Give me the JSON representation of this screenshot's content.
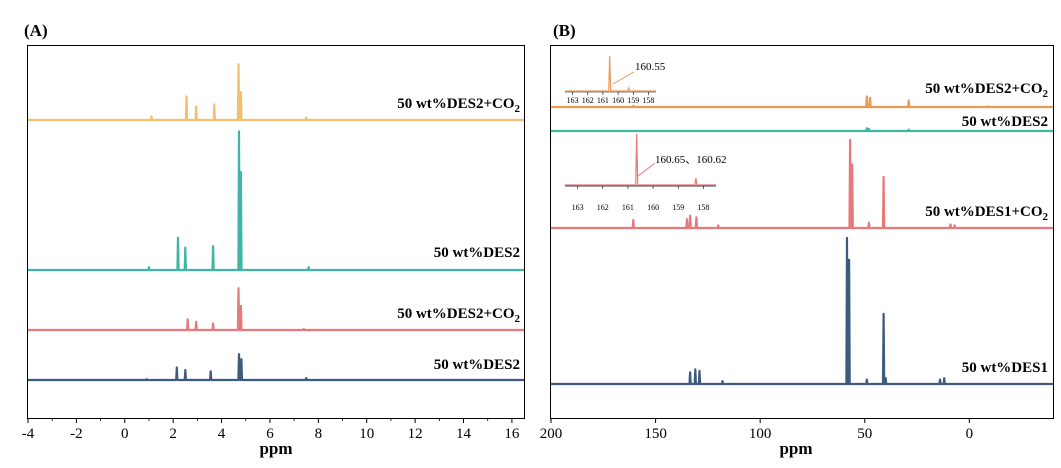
{
  "chart_data": [
    {
      "panel": "(A)",
      "type": "line",
      "title": "",
      "xlabel": "ppm",
      "ylabel": "",
      "xlim": [
        -4,
        16.5
      ],
      "x_ticks": [
        "-4",
        "-2",
        "0",
        "2",
        "4",
        "6",
        "8",
        "10",
        "12",
        "14",
        "16"
      ],
      "series": [
        {
          "name": "50 wt%DES2+CO₂",
          "label_main": "50 wt%DES2+CO",
          "label_sub": "2",
          "color": "#f3bf6e",
          "peaks": [
            [
              1.1,
              0.06
            ],
            [
              2.55,
              0.38
            ],
            [
              2.95,
              0.22
            ],
            [
              3.7,
              0.25
            ],
            [
              4.7,
              0.9
            ],
            [
              4.8,
              0.45
            ],
            [
              7.5,
              0.04
            ]
          ]
        },
        {
          "name": "50 wt%DES2",
          "label_main": "50 wt%DES2",
          "label_sub": "",
          "color": "#3fb6a3",
          "peaks": [
            [
              1.0,
              0.02
            ],
            [
              2.2,
              0.23
            ],
            [
              2.5,
              0.16
            ],
            [
              3.65,
              0.17
            ],
            [
              4.72,
              0.99
            ],
            [
              4.8,
              0.7
            ],
            [
              7.6,
              0.02
            ]
          ]
        },
        {
          "name": "50 wt%DES2+CO₂",
          "label_main": "50 wt%DES2+CO",
          "label_sub": "2",
          "color": "#e8787a",
          "peaks": [
            [
              2.6,
              0.22
            ],
            [
              2.95,
              0.17
            ],
            [
              3.65,
              0.14
            ],
            [
              4.7,
              0.87
            ],
            [
              4.8,
              0.5
            ],
            [
              7.4,
              0.02
            ]
          ]
        },
        {
          "name": "50 wt%DES2",
          "label_main": "50 wt%DES2",
          "label_sub": "",
          "color": "#3e5b7e",
          "peaks": [
            [
              0.9,
              0.02
            ],
            [
              2.15,
              0.33
            ],
            [
              2.5,
              0.26
            ],
            [
              3.55,
              0.23
            ],
            [
              4.72,
              0.68
            ],
            [
              4.82,
              0.55
            ],
            [
              7.5,
              0.05
            ]
          ]
        }
      ]
    },
    {
      "panel": "(B)",
      "type": "line",
      "title": "",
      "xlabel": "ppm",
      "ylabel": "",
      "xlim": [
        200,
        -40
      ],
      "x_ticks": [
        "200",
        "150",
        "100",
        "50",
        "0"
      ],
      "series": [
        {
          "name": "50 wt%DES2+CO₂",
          "label_main": "50 wt%DES2+CO",
          "label_sub": "2",
          "color": "#eb9a55",
          "peaks": [
            [
              160.55,
              0.04
            ],
            [
              49,
              0.35
            ],
            [
              47.5,
              0.3
            ],
            [
              29,
              0.22
            ],
            [
              -9,
              0.02
            ]
          ]
        },
        {
          "name": "50 wt%DES2",
          "label_main": "50 wt%DES2",
          "label_sub": "",
          "color": "#3fb6a3",
          "peaks": [
            [
              135,
              0.01
            ],
            [
              49,
              0.19
            ],
            [
              48,
              0.15
            ],
            [
              29,
              0.1
            ]
          ]
        },
        {
          "name": "50 wt%DES1+CO₂",
          "label_main": "50 wt%DES1+CO",
          "label_sub": "2",
          "color": "#e8787a",
          "peaks": [
            [
              160.65,
              0.09
            ],
            [
              135,
              0.1
            ],
            [
              133.5,
              0.14
            ],
            [
              130.5,
              0.12
            ],
            [
              120,
              0.03
            ],
            [
              57,
              1.0
            ],
            [
              56,
              0.72
            ],
            [
              48,
              0.06
            ],
            [
              41,
              0.58
            ],
            [
              9,
              0.04
            ],
            [
              7,
              0.03
            ]
          ]
        },
        {
          "name": "50 wt%DES1",
          "label_main": "50 wt%DES1",
          "label_sub": "",
          "color": "#3e5b7e",
          "peaks": [
            [
              133.5,
              0.08
            ],
            [
              131,
              0.1
            ],
            [
              129,
              0.09
            ],
            [
              118,
              0.02
            ],
            [
              58.5,
              1.0
            ],
            [
              57.5,
              0.85
            ],
            [
              49,
              0.03
            ],
            [
              41,
              0.48
            ],
            [
              40,
              0.04
            ],
            [
              14,
              0.03
            ],
            [
              12,
              0.04
            ]
          ]
        }
      ],
      "insets": [
        {
          "label": "160.55",
          "ticks": [
            "163",
            "162",
            "161",
            "160",
            "159",
            "158"
          ],
          "peak_ppm": 160.55
        },
        {
          "label": "160.65、160.62",
          "ticks": [
            "163",
            "162",
            "161",
            "160",
            "159",
            "158"
          ],
          "peak_ppm": 160.65
        }
      ]
    }
  ]
}
